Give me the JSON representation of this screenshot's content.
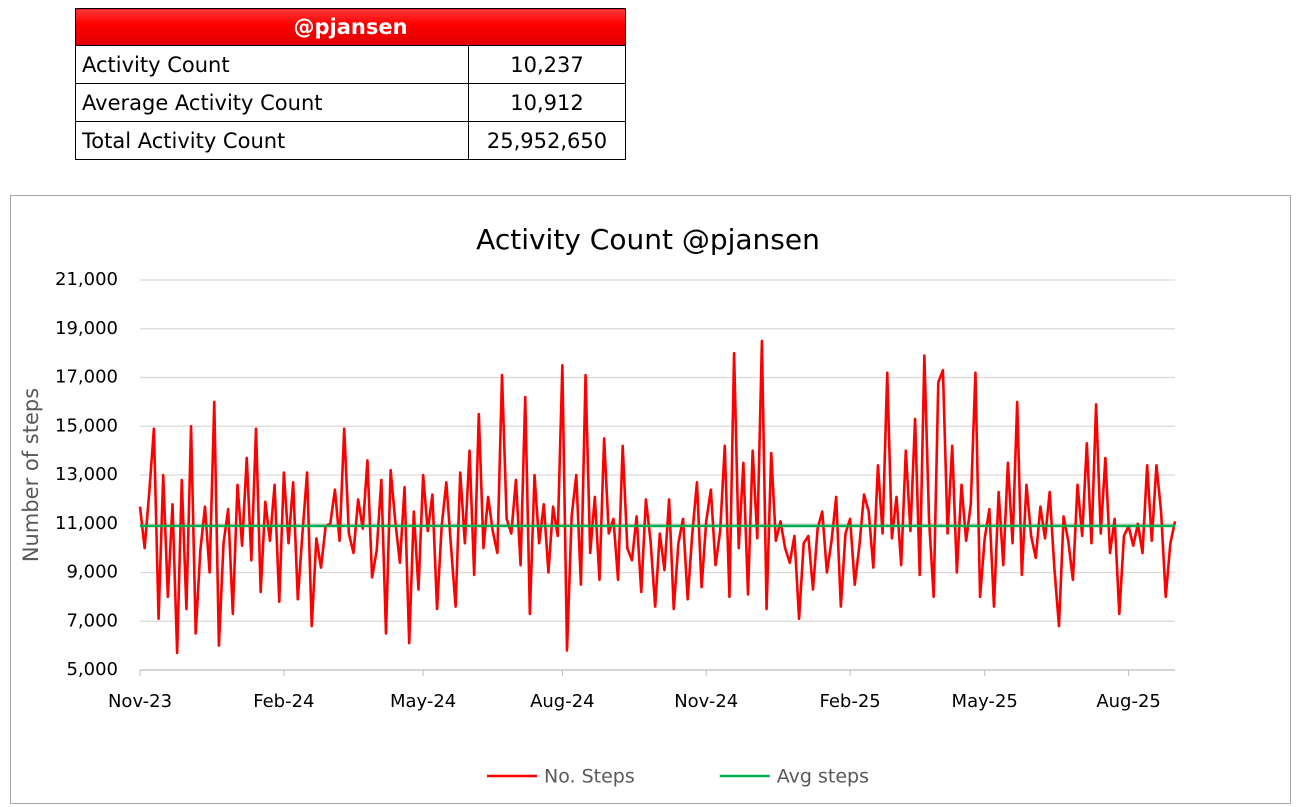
{
  "table": {
    "header": "@pjansen",
    "rows": [
      [
        "Activity Count",
        "10,237"
      ],
      [
        "Average Activity Count",
        "10,912"
      ],
      [
        "Total Activity Count",
        "25,952,650"
      ]
    ]
  },
  "chart_data": {
    "type": "line",
    "title": "Activity Count @pjansen",
    "y_label": "Number of steps",
    "ylim": [
      5000,
      21000
    ],
    "yticks": [
      {
        "value": 5000,
        "label": "5,000"
      },
      {
        "value": 7000,
        "label": "7,000"
      },
      {
        "value": 9000,
        "label": "9,000"
      },
      {
        "value": 11000,
        "label": "11,000"
      },
      {
        "value": 13000,
        "label": "13,000"
      },
      {
        "value": 15000,
        "label": "15,000"
      },
      {
        "value": 17000,
        "label": "17,000"
      },
      {
        "value": 19000,
        "label": "19,000"
      },
      {
        "value": 21000,
        "label": "21,000"
      }
    ],
    "grid": true,
    "legend": "bottom",
    "categories": [
      "Nov-23",
      null,
      null,
      null,
      null,
      null,
      null,
      null,
      null,
      null,
      null,
      null,
      null,
      null,
      null,
      null,
      null,
      null,
      null,
      null,
      null,
      null,
      null,
      null,
      null,
      null,
      null,
      null,
      null,
      null,
      null,
      "Feb-24",
      null,
      null,
      null,
      null,
      null,
      null,
      null,
      null,
      null,
      null,
      null,
      null,
      null,
      null,
      null,
      null,
      null,
      null,
      null,
      null,
      null,
      null,
      null,
      null,
      null,
      null,
      null,
      null,
      null,
      "May-24",
      null,
      null,
      null,
      null,
      null,
      null,
      null,
      null,
      null,
      null,
      null,
      null,
      null,
      null,
      null,
      null,
      null,
      null,
      null,
      null,
      null,
      null,
      null,
      null,
      null,
      null,
      null,
      null,
      null,
      "Aug-24",
      null,
      null,
      null,
      null,
      null,
      null,
      null,
      null,
      null,
      null,
      null,
      null,
      null,
      null,
      null,
      null,
      null,
      null,
      null,
      null,
      null,
      null,
      null,
      null,
      null,
      null,
      null,
      null,
      null,
      null,
      "Nov-24",
      null,
      null,
      null,
      null,
      null,
      null,
      null,
      null,
      null,
      null,
      null,
      null,
      null,
      null,
      null,
      null,
      null,
      null,
      null,
      null,
      null,
      null,
      null,
      null,
      null,
      null,
      null,
      null,
      null,
      null,
      "Feb-25",
      null,
      null,
      null,
      null,
      null,
      null,
      null,
      null,
      null,
      null,
      null,
      null,
      null,
      null,
      null,
      null,
      null,
      null,
      null,
      null,
      null,
      null,
      null,
      null,
      null,
      null,
      null,
      null,
      "May-25",
      null,
      null,
      null,
      null,
      null,
      null,
      null,
      null,
      null,
      null,
      null,
      null,
      null,
      null,
      null,
      null,
      null,
      null,
      null,
      null,
      null,
      null,
      null,
      null,
      null,
      null,
      null,
      null,
      null,
      null,
      "Aug-25",
      null,
      null,
      null,
      null,
      null,
      null,
      null,
      null,
      null,
      null
    ],
    "series": [
      {
        "name": "No. Steps",
        "color": "#ff0000",
        "values": [
          11700,
          10000,
          12300,
          14900,
          7100,
          13000,
          8000,
          11800,
          5700,
          12800,
          7500,
          15000,
          6500,
          9900,
          11700,
          9000,
          16000,
          6000,
          10200,
          11600,
          7300,
          12600,
          10100,
          13700,
          9500,
          14900,
          8200,
          11900,
          10300,
          12600,
          7800,
          13100,
          10200,
          12700,
          7900,
          10600,
          13100,
          6800,
          10400,
          9200,
          10900,
          11000,
          12400,
          10300,
          14900,
          10600,
          9800,
          12000,
          10800,
          13600,
          8800,
          9900,
          12800,
          6500,
          13200,
          11100,
          9400,
          12500,
          6100,
          11500,
          8300,
          13000,
          10700,
          12200,
          7500,
          10900,
          12700,
          10100,
          7600,
          13100,
          10200,
          14000,
          8900,
          15500,
          10000,
          12100,
          10700,
          9800,
          17100,
          11200,
          10600,
          12800,
          9300,
          16200,
          7300,
          13000,
          10200,
          11800,
          9000,
          11700,
          10500,
          17500,
          5800,
          11300,
          13000,
          8500,
          17100,
          9800,
          12100,
          8700,
          14500,
          10600,
          11200,
          8700,
          14200,
          10000,
          9500,
          11300,
          8200,
          12000,
          10300,
          7600,
          10600,
          9100,
          12000,
          7500,
          10200,
          11200,
          7900,
          10600,
          12700,
          8400,
          11100,
          12400,
          9300,
          10700,
          14200,
          8000,
          18000,
          10000,
          13500,
          8100,
          14000,
          10400,
          18500,
          7500,
          13900,
          10300,
          11100,
          10000,
          9400,
          10500,
          7100,
          10200,
          10500,
          8300,
          10800,
          11500,
          9000,
          10300,
          12100,
          7600,
          10600,
          11200,
          8500,
          10100,
          12200,
          11500,
          9200,
          13400,
          10600,
          17200,
          10400,
          12100,
          9300,
          14000,
          10700,
          15300,
          8900,
          17900,
          11200,
          8000,
          16800,
          17300,
          10600,
          14200,
          9000,
          12600,
          10300,
          11800,
          17200,
          8000,
          10400,
          11600,
          7600,
          12300,
          9300,
          13500,
          10200,
          16000,
          8900,
          12600,
          10500,
          9600,
          11700,
          10400,
          12300,
          9200,
          6800,
          11300,
          10300,
          8700,
          12600,
          10500,
          14300,
          10200,
          15900,
          10600,
          13700,
          9800,
          11200,
          7300,
          10500,
          10900,
          10100,
          11000,
          9800,
          13400,
          10300,
          13400,
          11500,
          8000,
          10200,
          11100
        ]
      }
    ],
    "avg_line": {
      "name": "Avg steps",
      "color": "#00b050",
      "value": 10912
    }
  }
}
